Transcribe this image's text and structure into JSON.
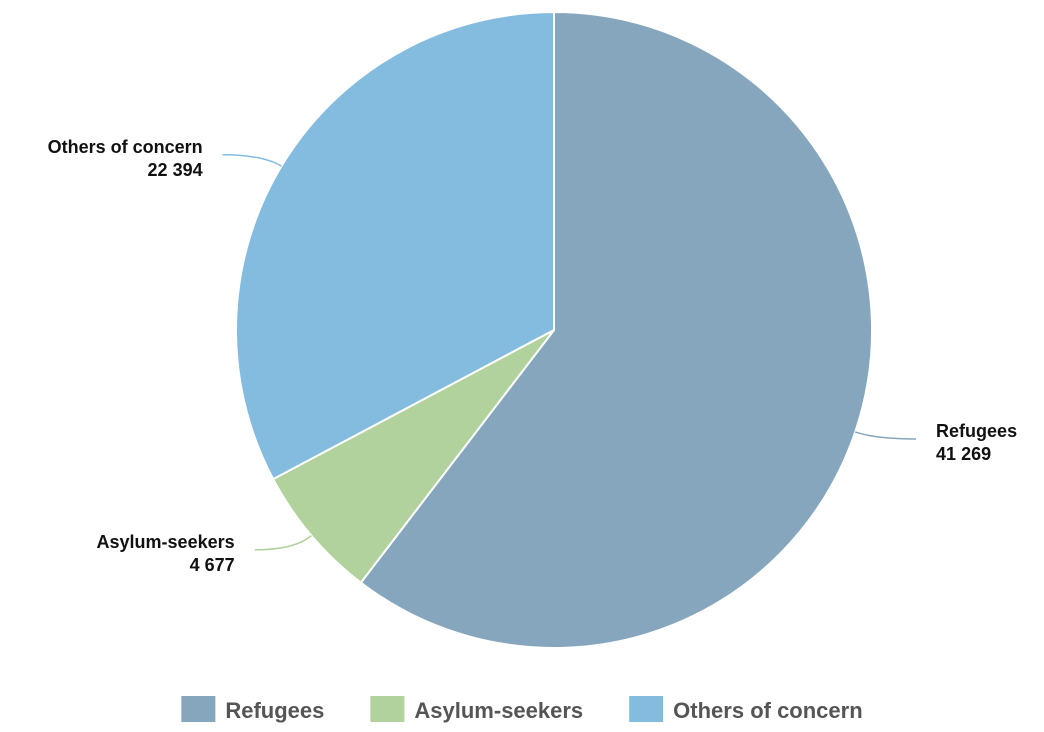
{
  "colors": {
    "refugees": "#85a6bc",
    "asylum_seekers": "#b1d29c",
    "others_of_concern": "#84bce0",
    "slice_border": "#ffffff"
  },
  "chart_data": {
    "type": "pie",
    "title": "",
    "start_angle_deg": 0,
    "direction": "clockwise",
    "slices": [
      {
        "name": "Refugees",
        "value": 41269,
        "value_label": "41 269",
        "color": "#85a6bc"
      },
      {
        "name": "Asylum-seekers",
        "value": 4677,
        "value_label": "4 677",
        "color": "#b1d29c"
      },
      {
        "name": "Others of concern",
        "value": 22394,
        "value_label": "22 394",
        "color": "#84bce0"
      }
    ],
    "legend": {
      "position": "bottom-center",
      "items": [
        "Refugees",
        "Asylum-seekers",
        "Others of concern"
      ]
    }
  }
}
